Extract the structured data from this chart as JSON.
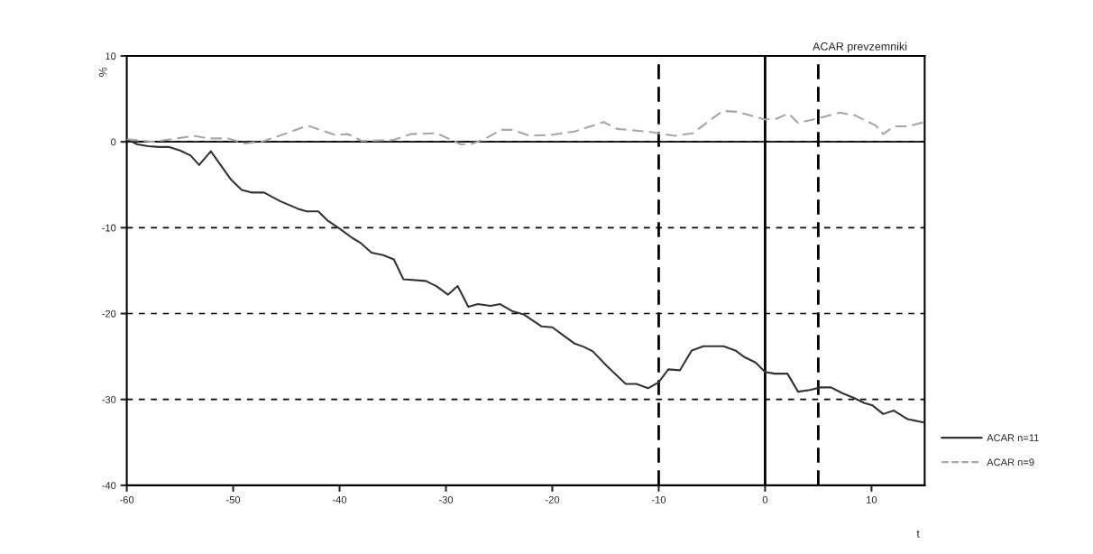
{
  "chart_data": {
    "type": "line",
    "title": "ACAR prevzemniki",
    "xlabel": "t",
    "ylabel": "%",
    "xlim": [
      -60,
      15
    ],
    "xticks": [
      -60,
      -50,
      -40,
      -30,
      -20,
      -10,
      0,
      10
    ],
    "ylim": [
      -40,
      10
    ],
    "yticks": [
      -40,
      -30,
      -20,
      -10,
      0,
      10
    ],
    "grid": "y",
    "legend": "bottom right",
    "ref_lines": [
      {
        "axis": "y",
        "value": 0,
        "line_style": "solid"
      },
      {
        "axis": "x",
        "value": -10,
        "line_style": "dashed"
      },
      {
        "axis": "x",
        "value": 0,
        "line_style": "solid"
      },
      {
        "axis": "x",
        "value": 5,
        "line_style": "dashed"
      }
    ],
    "series": [
      {
        "name": "ACAR n=11",
        "color": "#333333",
        "line_style": "solid",
        "x": [
          -60,
          -59,
          -58,
          -57,
          -56,
          -55,
          -54,
          -53.2,
          -52.1,
          -50.2,
          -49.2,
          -48.3,
          -47.1,
          -45.6,
          -43.9,
          -43.1,
          -42.0,
          -41.1,
          -40,
          -38.8,
          -38.1,
          -37.0,
          -35.9,
          -34.9,
          -34.0,
          -31.9,
          -30.9,
          -29.8,
          -28.9,
          -27.9,
          -27.0,
          -25.8,
          -24.9,
          -23.8,
          -22.7,
          -22.1,
          -21.0,
          -20.0,
          -19.0,
          -17.9,
          -17.0,
          -16.2,
          -14.8,
          -13.1,
          -12.1,
          -11.0,
          -10.0,
          -9.1,
          -8.0,
          -6.9,
          -5.8,
          -3.9,
          -2.8,
          -1.9,
          -0.9,
          0,
          0.9,
          2.1,
          3.1,
          4.2,
          5.2,
          6.2,
          7.3,
          8.3,
          9.3,
          10.1,
          11.1,
          12.1,
          13.4,
          15
        ],
        "values": [
          0.3,
          -0.3,
          -0.5,
          -0.6,
          -0.6,
          -1.0,
          -1.6,
          -2.7,
          -1.1,
          -4.4,
          -5.6,
          -5.9,
          -5.9,
          -6.9,
          -7.8,
          -8.1,
          -8.1,
          -9.2,
          -10.1,
          -11.2,
          -11.7,
          -12.9,
          -13.2,
          -13.7,
          -16.0,
          -16.2,
          -16.8,
          -17.8,
          -16.8,
          -19.2,
          -18.9,
          -19.1,
          -18.9,
          -19.7,
          -20.1,
          -20.6,
          -21.5,
          -21.6,
          -22.5,
          -23.5,
          -23.9,
          -24.4,
          -26.2,
          -28.2,
          -28.2,
          -28.7,
          -28.0,
          -26.5,
          -26.6,
          -24.3,
          -23.8,
          -23.8,
          -24.3,
          -25.1,
          -25.7,
          -26.8,
          -27.0,
          -27.0,
          -29.1,
          -28.9,
          -28.6,
          -28.6,
          -29.3,
          -29.8,
          -30.4,
          -30.7,
          -31.7,
          -31.3,
          -32.3,
          -32.7
        ]
      },
      {
        "name": "ACAR n=9",
        "color": "#a6a6a6",
        "line_style": "dashed",
        "x": [
          -60,
          -57.5,
          -55.8,
          -53.7,
          -52.4,
          -50.5,
          -48.9,
          -47.1,
          -45.2,
          -43.0,
          -40.4,
          -39.2,
          -37.9,
          -35.0,
          -33.3,
          -30.9,
          -29.8,
          -28.6,
          -27.7,
          -26.4,
          -24.8,
          -23.8,
          -22.1,
          -20.2,
          -17.9,
          -15.2,
          -13.9,
          -11.1,
          -10.0,
          -8.5,
          -6.8,
          -4.0,
          -2.6,
          0.0,
          1.1,
          2.2,
          3.1,
          5.2,
          7.0,
          8.4,
          10.4,
          11.1,
          12.1,
          13.4,
          15
        ],
        "values": [
          0.3,
          0,
          0.3,
          0.7,
          0.4,
          0.4,
          -0.2,
          0.1,
          0.9,
          1.9,
          0.8,
          0.9,
          0.1,
          0.2,
          0.9,
          1.0,
          0.4,
          -0.3,
          -0.3,
          0.3,
          1.4,
          1.4,
          0.7,
          0.8,
          1.2,
          2.3,
          1.5,
          1.2,
          1.0,
          0.7,
          1.0,
          3.6,
          3.5,
          2.6,
          2.7,
          3.3,
          2.2,
          2.8,
          3.4,
          3.1,
          1.9,
          0.9,
          1.8,
          1.8,
          2.3
        ]
      }
    ]
  }
}
